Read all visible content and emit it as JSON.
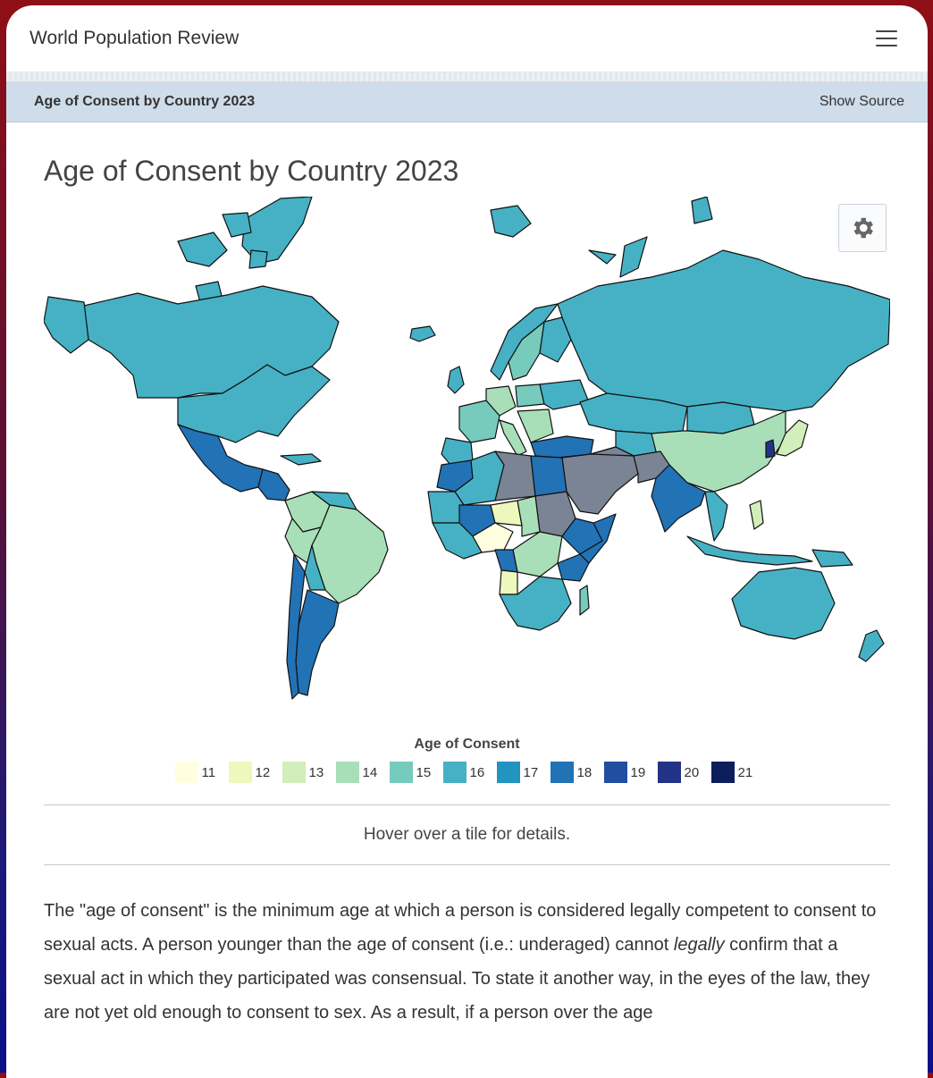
{
  "header": {
    "brand": "World Population Review"
  },
  "section": {
    "title": "Age of Consent by Country 2023",
    "source_label": "Show Source"
  },
  "page_title": "Age of Consent by Country 2023",
  "map": {
    "no_data_color": "#7a8494",
    "legend_title": "Age of Consent",
    "legend": [
      {
        "label": "11",
        "color": "#ffffe0"
      },
      {
        "label": "12",
        "color": "#eef8bd"
      },
      {
        "label": "13",
        "color": "#d2eebb"
      },
      {
        "label": "14",
        "color": "#a9dfb8"
      },
      {
        "label": "15",
        "color": "#76cbbd"
      },
      {
        "label": "16",
        "color": "#46b1c4"
      },
      {
        "label": "17",
        "color": "#2393c0"
      },
      {
        "label": "18",
        "color": "#2272b6"
      },
      {
        "label": "19",
        "color": "#224ea0"
      },
      {
        "label": "20",
        "color": "#213287"
      },
      {
        "label": "21",
        "color": "#0d1e5c"
      }
    ]
  },
  "hover_text": "Hover over a tile for details.",
  "paragraph": {
    "part1": "The \"age of consent\" is the minimum age at which a person is considered legally competent to consent to sexual acts. A person younger than the age of consent (i.e.: underaged) cannot ",
    "emphasis": "legally",
    "part2": " confirm that a sexual act in which they participated was consensual. To state it another way, in the eyes of the law, they are not yet old enough to consent to sex. As a result, if a person over the age"
  }
}
